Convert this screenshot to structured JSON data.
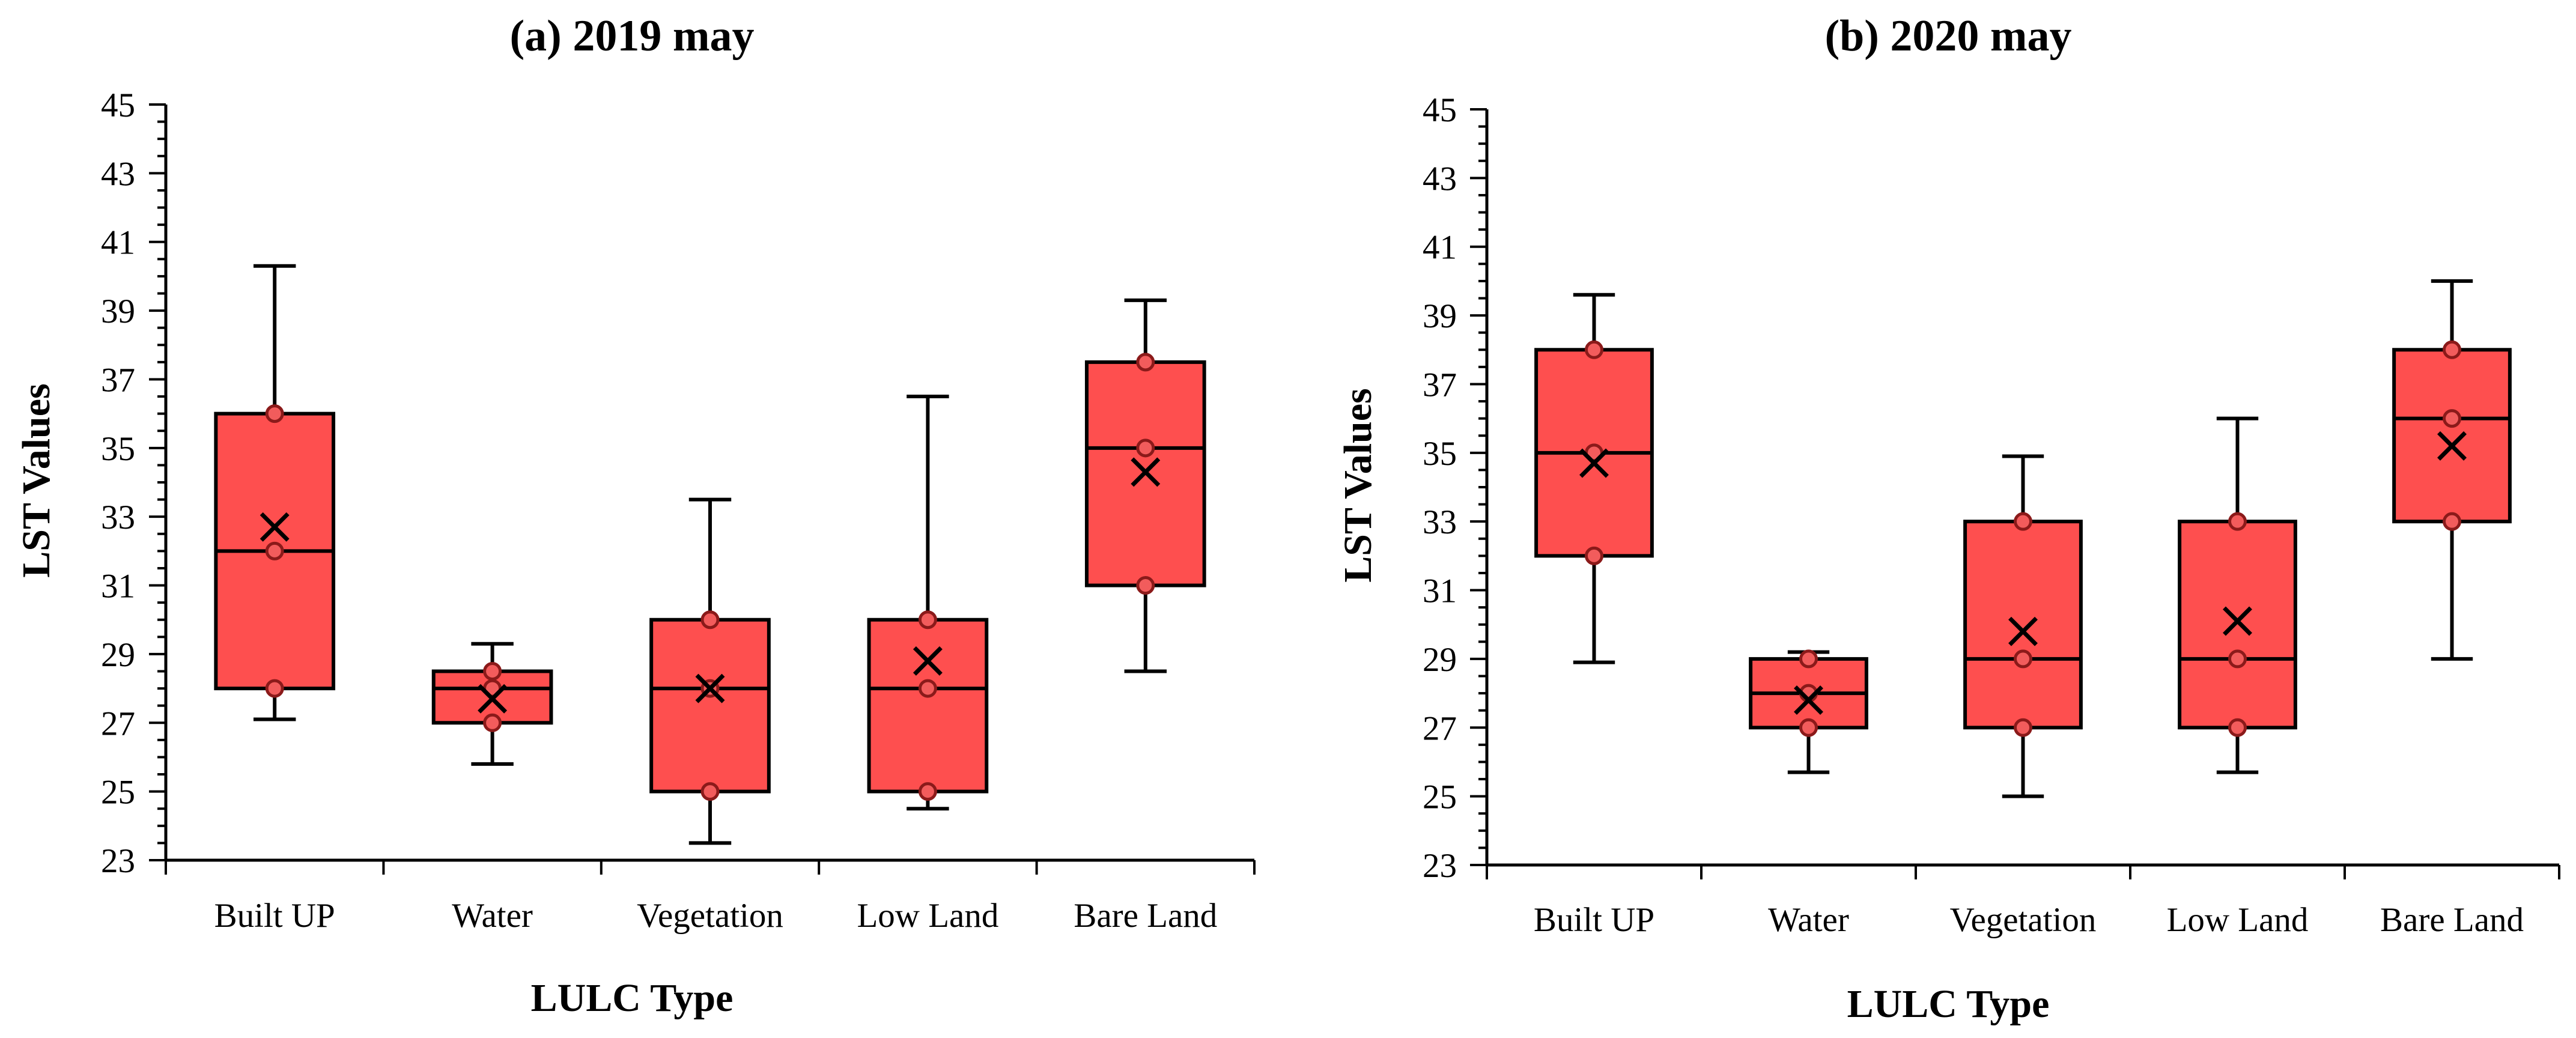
{
  "chart_data": [
    {
      "type": "box",
      "title": "(a) 2019 may",
      "xlabel": "LULC Type",
      "ylabel": "LST Values",
      "ylim": [
        23,
        45
      ],
      "yticks": [
        "23",
        "25",
        "27",
        "29",
        "31",
        "33",
        "35",
        "37",
        "39",
        "41",
        "43",
        "45"
      ],
      "categories": [
        "Built UP",
        "Water",
        "Vegetation",
        "Low Land",
        "Bare Land"
      ],
      "boxes": [
        {
          "category": "Built UP",
          "min": 27.1,
          "q1": 28.0,
          "median": 32.0,
          "q3": 36.0,
          "max": 40.3,
          "mean": 32.7,
          "points": [
            28.0,
            32.0,
            36.0
          ]
        },
        {
          "category": "Water",
          "min": 25.8,
          "q1": 27.0,
          "median": 28.0,
          "q3": 28.5,
          "max": 29.3,
          "mean": 27.7,
          "points": [
            27.0,
            28.0,
            28.5
          ]
        },
        {
          "category": "Vegetation",
          "min": 23.5,
          "q1": 25.0,
          "median": 28.0,
          "q3": 30.0,
          "max": 33.5,
          "mean": 28.0,
          "points": [
            25.0,
            28.0,
            30.0
          ]
        },
        {
          "category": "Low Land",
          "min": 24.5,
          "q1": 25.0,
          "median": 28.0,
          "q3": 30.0,
          "max": 36.5,
          "mean": 28.8,
          "points": [
            25.0,
            28.0,
            30.0
          ]
        },
        {
          "category": "Bare Land",
          "min": 28.5,
          "q1": 31.0,
          "median": 35.0,
          "q3": 37.5,
          "max": 39.3,
          "mean": 34.3,
          "points": [
            31.0,
            35.0,
            37.5
          ]
        }
      ]
    },
    {
      "type": "box",
      "title": "(b) 2020 may",
      "xlabel": "LULC Type",
      "ylabel": "LST Values",
      "ylim": [
        23,
        45
      ],
      "yticks": [
        "23",
        "25",
        "27",
        "29",
        "31",
        "33",
        "35",
        "37",
        "39",
        "41",
        "43",
        "45"
      ],
      "categories": [
        "Built UP",
        "Water",
        "Vegetation",
        "Low Land",
        "Bare Land"
      ],
      "boxes": [
        {
          "category": "Built UP",
          "min": 28.9,
          "q1": 32.0,
          "median": 35.0,
          "q3": 38.0,
          "max": 39.6,
          "mean": 34.7,
          "points": [
            32.0,
            35.0,
            38.0
          ]
        },
        {
          "category": "Water",
          "min": 25.7,
          "q1": 27.0,
          "median": 28.0,
          "q3": 29.0,
          "max": 29.2,
          "mean": 27.8,
          "points": [
            27.0,
            28.0,
            29.0
          ]
        },
        {
          "category": "Vegetation",
          "min": 25.0,
          "q1": 27.0,
          "median": 29.0,
          "q3": 33.0,
          "max": 34.9,
          "mean": 29.8,
          "points": [
            27.0,
            29.0,
            33.0
          ]
        },
        {
          "category": "Low Land",
          "min": 25.7,
          "q1": 27.0,
          "median": 29.0,
          "q3": 33.0,
          "max": 36.0,
          "mean": 30.1,
          "points": [
            27.0,
            29.0,
            33.0
          ]
        },
        {
          "category": "Bare Land",
          "min": 29.0,
          "q1": 33.0,
          "median": 36.0,
          "q3": 38.0,
          "max": 40.0,
          "mean": 35.2,
          "points": [
            33.0,
            36.0,
            38.0
          ]
        }
      ]
    }
  ],
  "colors": {
    "box_fill": "#fe4f4f",
    "stroke": "#000000",
    "point_fill": "#f25c5c",
    "point_stroke": "#8b1a1a"
  }
}
